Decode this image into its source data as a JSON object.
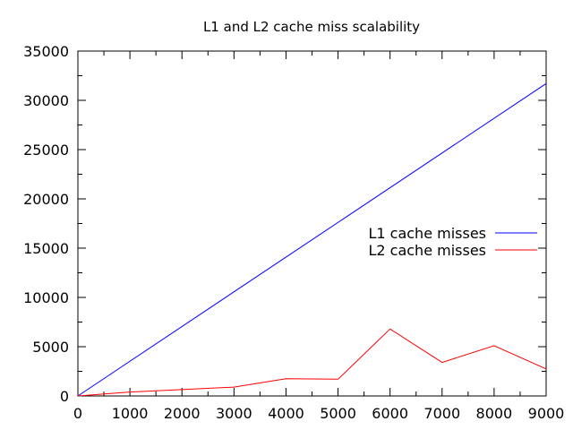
{
  "chart_data": {
    "type": "line",
    "title": "L1 and L2 cache miss scalability",
    "xlabel": "",
    "ylabel": "",
    "xlim": [
      0,
      9000
    ],
    "ylim": [
      0,
      35000
    ],
    "x_ticks": [
      0,
      1000,
      2000,
      3000,
      4000,
      5000,
      6000,
      7000,
      8000,
      9000
    ],
    "y_ticks": [
      0,
      5000,
      10000,
      15000,
      20000,
      25000,
      30000,
      35000
    ],
    "grid": false,
    "legend_position": "right",
    "series": [
      {
        "name": "L1 cache misses",
        "color": "#0000ff",
        "x": [
          0,
          9000
        ],
        "y": [
          0,
          31700
        ]
      },
      {
        "name": "L2 cache misses",
        "color": "#ff0000",
        "x": [
          0,
          1000,
          2000,
          3000,
          4000,
          5000,
          6000,
          7000,
          8000,
          9000
        ],
        "y": [
          0,
          400,
          650,
          900,
          1750,
          1700,
          6800,
          3400,
          5100,
          2750
        ]
      }
    ]
  }
}
